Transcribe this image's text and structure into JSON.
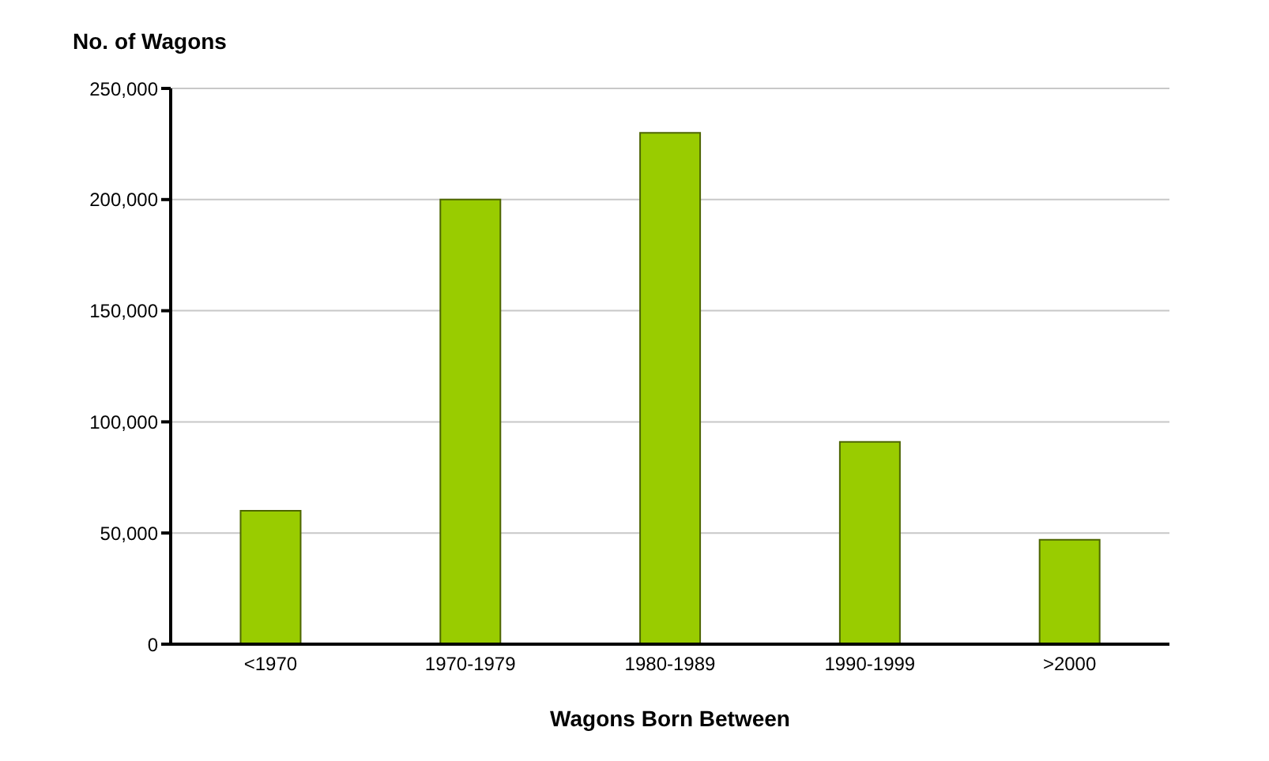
{
  "chart_data": {
    "type": "bar",
    "ylabel": "No. of Wagons",
    "xlabel": "Wagons Born Between",
    "categories": [
      "<1970",
      "1970-1979",
      "1980-1989",
      "1990-1999",
      ">2000"
    ],
    "values": [
      60000,
      200000,
      230000,
      91000,
      47000
    ],
    "color": "#99cc00",
    "ylim": [
      0,
      250000
    ],
    "yticks": [
      0,
      {
        "value": 50000,
        "label": "50,000"
      },
      {
        "value": 100000,
        "label": "100,000"
      },
      {
        "value": 150000,
        "label": "150,000"
      },
      {
        "value": 200000,
        "label": "200,000"
      },
      {
        "value": 250000,
        "label": "250,000"
      }
    ],
    "grid": "y"
  }
}
